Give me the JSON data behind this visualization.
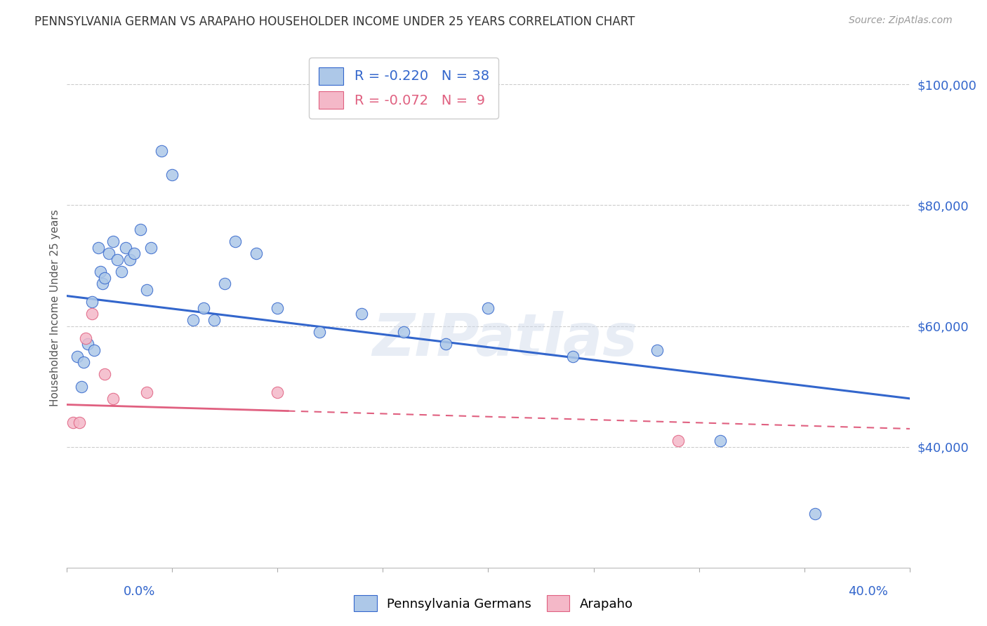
{
  "title": "PENNSYLVANIA GERMAN VS ARAPAHO HOUSEHOLDER INCOME UNDER 25 YEARS CORRELATION CHART",
  "source": "Source: ZipAtlas.com",
  "ylabel": "Householder Income Under 25 years",
  "legend_label1": "Pennsylvania Germans",
  "legend_label2": "Arapaho",
  "r1": -0.22,
  "n1": 38,
  "r2": -0.072,
  "n2": 9,
  "xlim": [
    0.0,
    0.4
  ],
  "ylim": [
    20000,
    106000
  ],
  "yticks": [
    40000,
    60000,
    80000,
    100000
  ],
  "ytick_labels": [
    "$40,000",
    "$60,000",
    "$80,000",
    "$100,000"
  ],
  "color_pg": "#adc8e8",
  "color_ar": "#f4b8c8",
  "line_color_pg": "#3366cc",
  "line_color_ar": "#e06080",
  "background_color": "#ffffff",
  "watermark": "ZIPatlas",
  "pg_x": [
    0.005,
    0.007,
    0.008,
    0.01,
    0.012,
    0.013,
    0.015,
    0.016,
    0.017,
    0.018,
    0.02,
    0.022,
    0.024,
    0.026,
    0.028,
    0.03,
    0.032,
    0.035,
    0.038,
    0.04,
    0.045,
    0.05,
    0.06,
    0.065,
    0.07,
    0.075,
    0.08,
    0.09,
    0.1,
    0.12,
    0.14,
    0.16,
    0.18,
    0.2,
    0.24,
    0.28,
    0.31,
    0.355
  ],
  "pg_y": [
    55000,
    50000,
    54000,
    57000,
    64000,
    56000,
    73000,
    69000,
    67000,
    68000,
    72000,
    74000,
    71000,
    69000,
    73000,
    71000,
    72000,
    76000,
    66000,
    73000,
    89000,
    85000,
    61000,
    63000,
    61000,
    67000,
    74000,
    72000,
    63000,
    59000,
    62000,
    59000,
    57000,
    63000,
    55000,
    56000,
    41000,
    29000
  ],
  "ar_x": [
    0.003,
    0.006,
    0.009,
    0.012,
    0.018,
    0.022,
    0.038,
    0.1,
    0.29
  ],
  "ar_y": [
    44000,
    44000,
    58000,
    62000,
    52000,
    48000,
    49000,
    49000,
    41000
  ],
  "xticks": [
    0.0,
    0.05,
    0.1,
    0.15,
    0.2,
    0.25,
    0.3,
    0.35,
    0.4
  ]
}
